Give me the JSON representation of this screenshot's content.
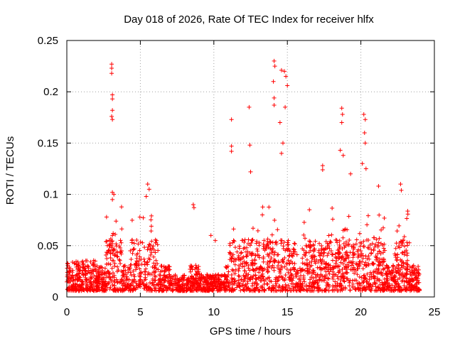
{
  "chart_data": {
    "type": "scatter",
    "title": "Day 018 of 2026, Rate Of TEC Index for receiver hlfx",
    "xlabel": "GPS time / hours",
    "ylabel": "ROTI / TECUs",
    "xlim": [
      0,
      25
    ],
    "ylim": [
      0,
      0.25
    ],
    "xticks": [
      "0",
      "5",
      "10",
      "15",
      "20",
      "25"
    ],
    "yticks": [
      "0",
      "0.05",
      "0.1",
      "0.15",
      "0.2",
      "0.25"
    ],
    "grid": true,
    "marker": "+",
    "color": "#ff0000",
    "series_name": "ROTI",
    "data_span_hours": [
      0,
      24
    ],
    "notable_points": [
      {
        "x": 3.05,
        "y": 0.227
      },
      {
        "x": 3.05,
        "y": 0.223
      },
      {
        "x": 3.05,
        "y": 0.218
      },
      {
        "x": 3.1,
        "y": 0.197
      },
      {
        "x": 3.1,
        "y": 0.193
      },
      {
        "x": 3.1,
        "y": 0.182
      },
      {
        "x": 3.05,
        "y": 0.176
      },
      {
        "x": 3.1,
        "y": 0.173
      },
      {
        "x": 3.1,
        "y": 0.102
      },
      {
        "x": 3.2,
        "y": 0.1
      },
      {
        "x": 3.1,
        "y": 0.095
      },
      {
        "x": 5.5,
        "y": 0.11
      },
      {
        "x": 5.6,
        "y": 0.105
      },
      {
        "x": 5.4,
        "y": 0.098
      },
      {
        "x": 8.6,
        "y": 0.09
      },
      {
        "x": 8.65,
        "y": 0.087
      },
      {
        "x": 11.2,
        "y": 0.173
      },
      {
        "x": 11.2,
        "y": 0.147
      },
      {
        "x": 11.2,
        "y": 0.142
      },
      {
        "x": 12.4,
        "y": 0.185
      },
      {
        "x": 12.45,
        "y": 0.148
      },
      {
        "x": 12.5,
        "y": 0.122
      },
      {
        "x": 14.1,
        "y": 0.23
      },
      {
        "x": 14.15,
        "y": 0.225
      },
      {
        "x": 14.05,
        "y": 0.21
      },
      {
        "x": 14.1,
        "y": 0.194
      },
      {
        "x": 14.1,
        "y": 0.187
      },
      {
        "x": 14.6,
        "y": 0.221
      },
      {
        "x": 14.8,
        "y": 0.22
      },
      {
        "x": 14.9,
        "y": 0.215
      },
      {
        "x": 15.0,
        "y": 0.206
      },
      {
        "x": 14.85,
        "y": 0.185
      },
      {
        "x": 14.5,
        "y": 0.17
      },
      {
        "x": 14.7,
        "y": 0.15
      },
      {
        "x": 14.6,
        "y": 0.14
      },
      {
        "x": 17.4,
        "y": 0.128
      },
      {
        "x": 17.4,
        "y": 0.124
      },
      {
        "x": 18.7,
        "y": 0.184
      },
      {
        "x": 18.75,
        "y": 0.178
      },
      {
        "x": 18.7,
        "y": 0.17
      },
      {
        "x": 18.6,
        "y": 0.143
      },
      {
        "x": 18.8,
        "y": 0.138
      },
      {
        "x": 20.2,
        "y": 0.178
      },
      {
        "x": 20.3,
        "y": 0.173
      },
      {
        "x": 20.25,
        "y": 0.16
      },
      {
        "x": 20.3,
        "y": 0.15
      },
      {
        "x": 20.1,
        "y": 0.13
      },
      {
        "x": 20.35,
        "y": 0.125
      },
      {
        "x": 21.2,
        "y": 0.108
      },
      {
        "x": 22.7,
        "y": 0.11
      },
      {
        "x": 22.75,
        "y": 0.104
      },
      {
        "x": 9.8,
        "y": 0.06
      },
      {
        "x": 10.1,
        "y": 0.055
      },
      {
        "x": 13.3,
        "y": 0.08
      },
      {
        "x": 16.5,
        "y": 0.085
      },
      {
        "x": 19.3,
        "y": 0.12
      }
    ]
  }
}
